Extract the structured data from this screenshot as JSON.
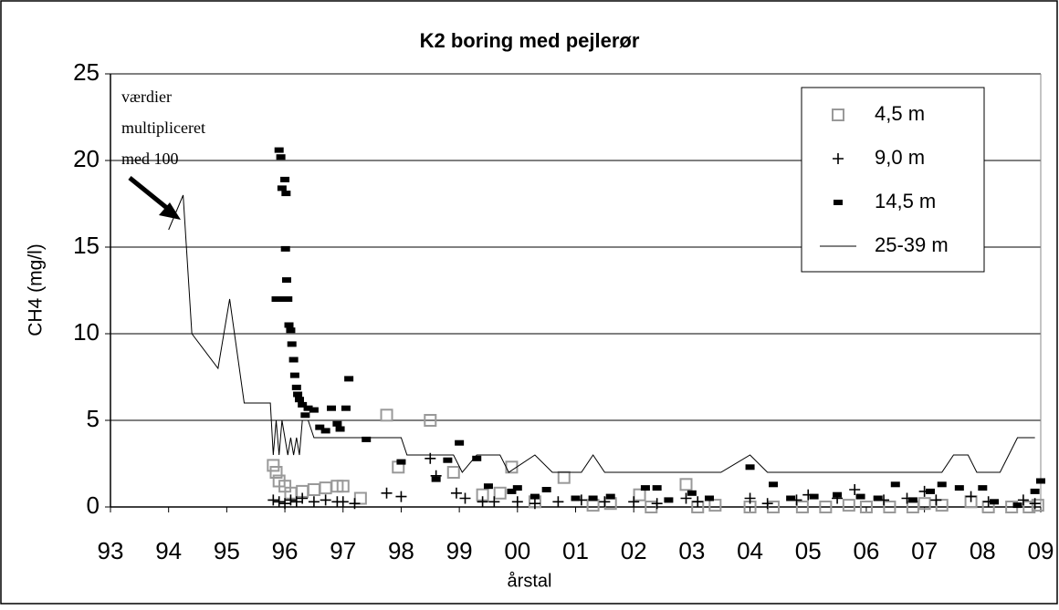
{
  "chart_data": {
    "type": "scatter",
    "title": "K2 boring med pejlerør",
    "x_label": "årstal",
    "y_label": "CH4 (mg/l)",
    "annotation": [
      "værdier",
      "multipliceret",
      "med 100"
    ],
    "xlim": [
      1993,
      2009
    ],
    "xticks": [
      {
        "value": 1993,
        "label": "93"
      },
      {
        "value": 1994,
        "label": "94"
      },
      {
        "value": 1995,
        "label": "95"
      },
      {
        "value": 1996,
        "label": "96"
      },
      {
        "value": 1997,
        "label": "97"
      },
      {
        "value": 1998,
        "label": "98"
      },
      {
        "value": 1999,
        "label": "99"
      },
      {
        "value": 2000,
        "label": "00"
      },
      {
        "value": 2001,
        "label": "01"
      },
      {
        "value": 2002,
        "label": "02"
      },
      {
        "value": 2003,
        "label": "03"
      },
      {
        "value": 2004,
        "label": "04"
      },
      {
        "value": 2005,
        "label": "05"
      },
      {
        "value": 2006,
        "label": "06"
      },
      {
        "value": 2007,
        "label": "07"
      },
      {
        "value": 2008,
        "label": "08"
      },
      {
        "value": 2009,
        "label": "09"
      }
    ],
    "ylim": [
      0,
      25
    ],
    "yticks": [
      0,
      5,
      10,
      15,
      20,
      25
    ],
    "grid": true,
    "legend": "upper right",
    "series": [
      {
        "name": "4,5 m",
        "marker": "square",
        "color": "#999999",
        "x": [
          1995.8,
          1995.85,
          1995.9,
          1996.0,
          1996.1,
          1996.3,
          1996.5,
          1996.7,
          1996.9,
          1997.0,
          1997.3,
          1997.75,
          1997.95,
          1998.5,
          1998.9,
          1999.4,
          1999.7,
          1999.9,
          2000.3,
          2000.8,
          2001.3,
          2001.6,
          2002.1,
          2002.3,
          2002.9,
          2003.1,
          2003.4,
          2004.0,
          2004.4,
          2004.9,
          2005.3,
          2005.7,
          2006.0,
          2006.4,
          2006.8,
          2007.0,
          2007.3,
          2007.8,
          2008.1,
          2008.5,
          2008.8,
          2008.95
        ],
        "values": [
          2.4,
          2.0,
          1.5,
          1.2,
          0.8,
          0.9,
          1.0,
          1.1,
          1.2,
          1.2,
          0.5,
          5.3,
          2.3,
          5.0,
          2.0,
          0.7,
          0.8,
          2.3,
          0.3,
          1.7,
          0.1,
          0.2,
          0.7,
          0,
          1.3,
          0,
          0.1,
          0,
          0,
          0,
          0,
          0.1,
          0,
          0,
          0,
          0.2,
          0.1,
          0.3,
          0,
          0,
          0,
          0.1
        ]
      },
      {
        "name": "9,0 m",
        "marker": "plus",
        "color": "#000000",
        "x": [
          1995.8,
          1995.9,
          1996.0,
          1996.1,
          1996.2,
          1996.3,
          1996.5,
          1996.7,
          1996.9,
          1997.0,
          1997.2,
          1997.75,
          1998.0,
          1998.5,
          1998.6,
          1998.95,
          1999.1,
          1999.4,
          1999.6,
          2000.0,
          2000.3,
          2000.7,
          2001.1,
          2001.5,
          2002.0,
          2002.4,
          2002.9,
          2003.1,
          2004.0,
          2004.3,
          2004.8,
          2005.0,
          2005.5,
          2005.8,
          2006.3,
          2006.7,
          2007.0,
          2007.2,
          2007.8,
          2008.1,
          2008.7,
          2008.9
        ],
        "values": [
          0.4,
          0.3,
          0.2,
          0.4,
          0.3,
          0.5,
          0.3,
          0.4,
          0.3,
          0.3,
          0.2,
          0.8,
          0.6,
          2.8,
          1.8,
          0.8,
          0.5,
          0.3,
          0.3,
          0.3,
          0.2,
          0.3,
          0.4,
          0.3,
          0.3,
          0.2,
          0.5,
          0.3,
          0.5,
          0.2,
          0.4,
          0.7,
          0.5,
          1.0,
          0.4,
          0.5,
          0.9,
          0.4,
          0.6,
          0.3,
          0.4,
          0.2
        ]
      },
      {
        "name": "14,5 m",
        "marker": "dash",
        "color": "#000000",
        "x": [
          1995.85,
          1995.9,
          1995.93,
          1995.95,
          1996.0,
          1996.02,
          1995.97,
          1996.01,
          1996.03,
          1996.05,
          1996.07,
          1996.1,
          1996.12,
          1996.15,
          1996.17,
          1996.2,
          1996.22,
          1996.25,
          1996.3,
          1996.35,
          1996.4,
          1996.5,
          1996.6,
          1996.7,
          1996.8,
          1996.9,
          1996.95,
          1997.05,
          1997.1,
          1997.4,
          1998.0,
          1998.6,
          1998.8,
          1999.0,
          1999.3,
          1999.5,
          1999.9,
          2000.0,
          2000.3,
          2000.5,
          2001.0,
          2001.3,
          2001.6,
          2002.2,
          2002.4,
          2002.6,
          2003.0,
          2003.3,
          2004.0,
          2004.4,
          2004.7,
          2005.1,
          2005.5,
          2005.9,
          2006.2,
          2006.5,
          2006.8,
          2007.1,
          2007.3,
          2007.6,
          2008.0,
          2008.2,
          2008.6,
          2008.9,
          2009.0
        ],
        "values": [
          12,
          20.6,
          20.2,
          18.4,
          18.9,
          18.1,
          12,
          14.9,
          13.1,
          12,
          10.5,
          10.2,
          9.4,
          8.5,
          7.6,
          6.9,
          6.5,
          6.2,
          5.9,
          5.3,
          5.7,
          5.6,
          4.6,
          4.4,
          5.7,
          4.8,
          4.5,
          5.7,
          7.4,
          3.9,
          2.6,
          1.6,
          2.7,
          3.7,
          2.8,
          1.2,
          0.9,
          1.1,
          0.6,
          1.0,
          0.5,
          0.5,
          0.6,
          1.1,
          1.1,
          0.4,
          0.8,
          0.5,
          2.3,
          1.3,
          0.5,
          0.6,
          0.7,
          0.6,
          0.5,
          1.3,
          0.4,
          0.9,
          1.3,
          1.1,
          1.1,
          0.3,
          0.1,
          0.9,
          1.5
        ]
      },
      {
        "name": "25-39 m",
        "marker": "line",
        "color": "#000000",
        "x": [
          1994.0,
          1994.25,
          1994.4,
          1994.85,
          1995.05,
          1995.3,
          1995.75,
          1995.8,
          1995.85,
          1995.9,
          1995.95,
          1996.05,
          1996.1,
          1996.15,
          1996.2,
          1996.25,
          1996.3,
          1996.4,
          1996.5,
          1997.0,
          1998.0,
          1998.1,
          1998.9,
          1999.05,
          1999.3,
          1999.7,
          1999.85,
          2000.3,
          2000.6,
          2001.1,
          2001.3,
          2001.5,
          2003.5,
          2004.0,
          2004.3,
          2007.3,
          2007.5,
          2007.75,
          2007.9,
          2008.3,
          2008.6,
          2008.9
        ],
        "values": [
          16,
          18,
          10,
          8,
          12,
          6,
          6,
          3,
          5,
          3,
          5,
          3,
          4,
          3,
          4,
          3,
          5,
          5,
          4,
          4,
          4,
          3,
          3,
          2,
          3,
          3,
          2,
          3,
          2,
          2,
          3,
          2,
          2,
          3,
          2,
          2,
          3,
          3,
          2,
          2,
          4,
          4
        ]
      }
    ]
  }
}
